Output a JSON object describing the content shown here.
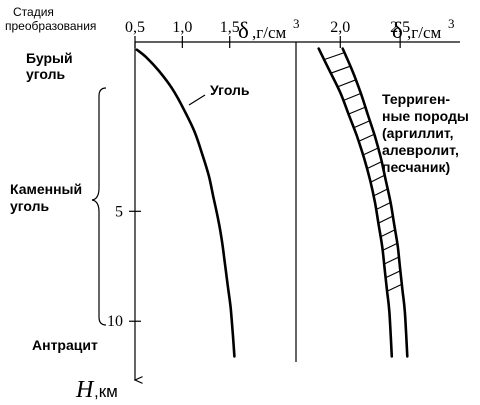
{
  "chart_data": [
    {
      "type": "line",
      "panel": "left",
      "x_unit_symbol": "δ",
      "x_unit_text": ",г/см",
      "x_unit_sup": "3",
      "x_ticks": [
        {
          "value": 0.5,
          "label": "0,5"
        },
        {
          "value": 1.0,
          "label": "1,0"
        },
        {
          "value": 1.5,
          "label": "1,5"
        }
      ],
      "xlim": [
        0.5,
        2.2
      ],
      "y_axis_label": "H",
      "y_axis_unit": ",км",
      "y_ticks": [
        {
          "value": 5,
          "label": "5"
        },
        {
          "value": 10,
          "label": "10"
        }
      ],
      "ylim": [
        -2.7,
        12.9
      ],
      "series": [
        {
          "name": "Уголь",
          "x": [
            0.52,
            0.62,
            0.75,
            0.89,
            1.02,
            1.13,
            1.21,
            1.28,
            1.33,
            1.38,
            1.42,
            1.45,
            1.48,
            1.51,
            1.53,
            1.55
          ],
          "y": [
            -2.35,
            -2.0,
            -1.4,
            -0.6,
            0.4,
            1.4,
            2.4,
            3.4,
            4.4,
            5.4,
            6.4,
            7.4,
            8.4,
            9.4,
            10.4,
            11.6
          ]
        }
      ],
      "annotations": [
        {
          "text": "Уголь",
          "series": "Уголь"
        }
      ]
    },
    {
      "type": "area",
      "panel": "right",
      "x_unit_symbol": "δ",
      "x_unit_text": ",г/см",
      "x_unit_sup": "3",
      "x_ticks": [
        {
          "value": 2.0,
          "label": "2,0"
        },
        {
          "value": 2.5,
          "label": "2,5"
        }
      ],
      "xlim": [
        1.63,
        3.0
      ],
      "ylim": [
        -2.7,
        12.9
      ],
      "series": [
        {
          "name": "Терригенные породы (аргиллит, алевролит, песчаник)",
          "lower_x": [
            1.82,
            1.91,
            2.0,
            2.07,
            2.14,
            2.2,
            2.25,
            2.29,
            2.32,
            2.35,
            2.37,
            2.39,
            2.41,
            2.43
          ],
          "upper_x": [
            2.02,
            2.1,
            2.17,
            2.23,
            2.29,
            2.34,
            2.38,
            2.42,
            2.45,
            2.48,
            2.5,
            2.52,
            2.54,
            2.56
          ],
          "y": [
            -2.4,
            -1.4,
            -0.4,
            0.6,
            1.6,
            2.6,
            3.6,
            4.6,
            5.6,
            6.6,
            7.6,
            8.6,
            9.6,
            11.6
          ]
        }
      ],
      "annotations": [
        {
          "lines": [
            "Терриген-",
            "ные породы",
            "(аргиллит,",
            "алевролит,",
            "песчаник)"
          ]
        }
      ]
    }
  ],
  "stage_axis": {
    "title_lines": [
      "Стадия",
      "преобразования"
    ],
    "stages": [
      {
        "lines": [
          "Бурый",
          "уголь"
        ]
      },
      {
        "lines": [
          "Каменный",
          "уголь"
        ]
      },
      {
        "lines": [
          "Антрацит"
        ]
      }
    ]
  }
}
